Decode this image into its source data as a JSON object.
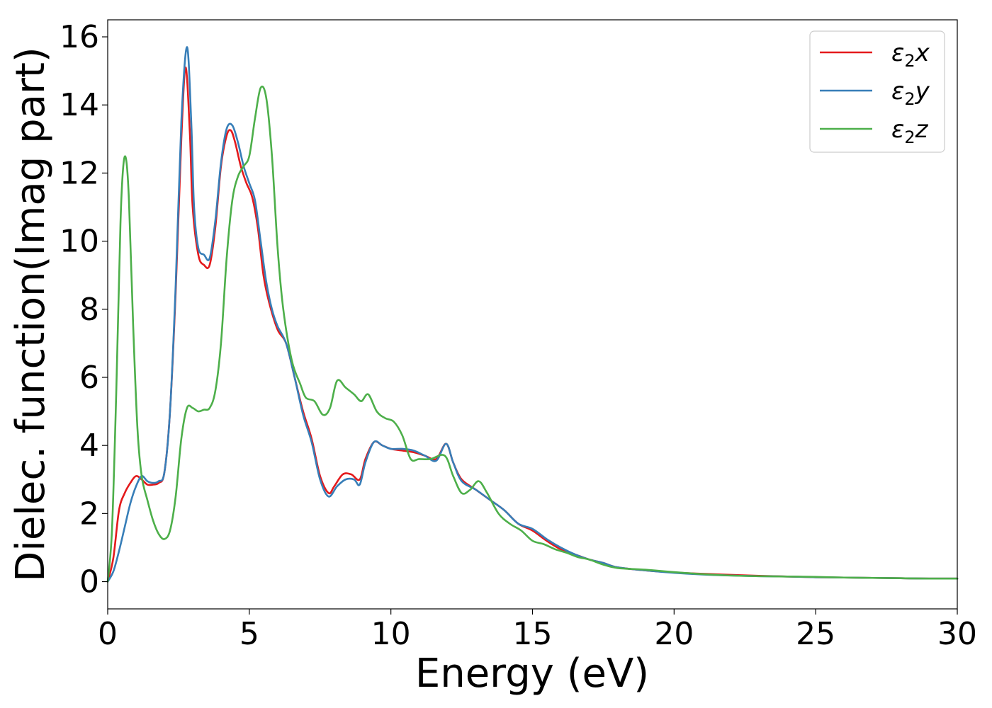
{
  "chart_data": {
    "type": "line",
    "title": "",
    "xlabel": "Energy (eV)",
    "ylabel": "Dielec. function(Imag part)",
    "xlim": [
      0,
      30
    ],
    "ylim": [
      -0.8,
      16.5
    ],
    "xticks": [
      0,
      5,
      10,
      15,
      20,
      25,
      30
    ],
    "yticks": [
      0,
      2,
      4,
      6,
      8,
      10,
      12,
      14,
      16
    ],
    "grid": false,
    "legend_position": "top-right",
    "series": [
      {
        "name": "ε2x",
        "legend": {
          "base": "ε",
          "sub": "2",
          "var": "x"
        },
        "color": "#e41a1c",
        "x": [
          0,
          0.2,
          0.4,
          0.6,
          0.8,
          1.0,
          1.2,
          1.4,
          1.6,
          1.8,
          2.0,
          2.2,
          2.4,
          2.6,
          2.75,
          2.9,
          3.0,
          3.2,
          3.4,
          3.6,
          3.8,
          4.0,
          4.2,
          4.35,
          4.5,
          4.7,
          4.9,
          5.1,
          5.3,
          5.5,
          5.7,
          6.0,
          6.3,
          6.6,
          6.9,
          7.2,
          7.5,
          7.8,
          8.0,
          8.3,
          8.6,
          8.9,
          9.1,
          9.4,
          9.7,
          10.0,
          10.4,
          10.8,
          11.2,
          11.6,
          11.95,
          12.2,
          12.5,
          13.0,
          13.5,
          14.0,
          14.5,
          15.0,
          15.5,
          16.0,
          16.5,
          17.0,
          17.5,
          18.0,
          19.0,
          20.0,
          21.0,
          22.0,
          23.0,
          24.0,
          25.0,
          26.0,
          27.0,
          28.0,
          29.0,
          30.0
        ],
        "y": [
          0.0,
          0.7,
          2.1,
          2.6,
          2.9,
          3.1,
          3.0,
          2.85,
          2.85,
          2.9,
          3.2,
          5.0,
          8.5,
          13.0,
          15.1,
          13.2,
          11.0,
          9.6,
          9.3,
          9.3,
          10.4,
          12.2,
          13.1,
          13.25,
          12.9,
          12.2,
          11.7,
          11.3,
          10.4,
          9.0,
          8.2,
          7.4,
          7.0,
          6.0,
          5.0,
          4.2,
          3.1,
          2.6,
          2.8,
          3.15,
          3.15,
          3.0,
          3.6,
          4.1,
          4.0,
          3.9,
          3.85,
          3.8,
          3.7,
          3.6,
          4.05,
          3.5,
          3.0,
          2.7,
          2.4,
          2.1,
          1.7,
          1.5,
          1.2,
          0.95,
          0.8,
          0.65,
          0.55,
          0.42,
          0.33,
          0.27,
          0.23,
          0.2,
          0.17,
          0.15,
          0.13,
          0.12,
          0.11,
          0.1,
          0.09,
          0.09
        ]
      },
      {
        "name": "ε2y",
        "legend": {
          "base": "ε",
          "sub": "2",
          "var": "y"
        },
        "color": "#377eb8",
        "x": [
          0,
          0.2,
          0.4,
          0.6,
          0.8,
          1.0,
          1.2,
          1.4,
          1.6,
          1.8,
          2.0,
          2.2,
          2.4,
          2.6,
          2.8,
          2.95,
          3.05,
          3.2,
          3.4,
          3.6,
          3.8,
          4.0,
          4.2,
          4.4,
          4.6,
          4.8,
          5.0,
          5.2,
          5.4,
          5.6,
          5.8,
          6.0,
          6.3,
          6.6,
          6.9,
          7.2,
          7.5,
          7.8,
          8.1,
          8.4,
          8.7,
          8.9,
          9.1,
          9.4,
          9.7,
          10.0,
          10.4,
          10.8,
          11.2,
          11.6,
          11.95,
          12.2,
          12.5,
          13.0,
          13.5,
          14.0,
          14.5,
          15.0,
          15.5,
          16.0,
          16.5,
          17.0,
          17.5,
          18.0,
          19.0,
          20.0,
          21.0,
          22.0,
          23.0,
          24.0,
          25.0,
          26.0,
          27.0,
          28.0,
          29.0,
          30.0
        ],
        "y": [
          0.0,
          0.3,
          0.9,
          1.6,
          2.3,
          2.8,
          3.1,
          2.95,
          2.9,
          2.95,
          3.2,
          5.0,
          8.7,
          13.5,
          15.7,
          13.5,
          11.0,
          9.8,
          9.6,
          9.5,
          10.6,
          12.3,
          13.3,
          13.4,
          12.9,
          12.2,
          11.7,
          11.2,
          10.0,
          8.8,
          8.0,
          7.5,
          7.0,
          6.0,
          4.9,
          4.1,
          3.0,
          2.5,
          2.8,
          3.0,
          3.0,
          2.85,
          3.5,
          4.1,
          4.0,
          3.9,
          3.9,
          3.85,
          3.7,
          3.55,
          4.05,
          3.5,
          2.95,
          2.7,
          2.4,
          2.1,
          1.7,
          1.55,
          1.25,
          1.0,
          0.8,
          0.65,
          0.55,
          0.42,
          0.33,
          0.26,
          0.21,
          0.18,
          0.16,
          0.15,
          0.13,
          0.12,
          0.11,
          0.1,
          0.09,
          0.09
        ]
      },
      {
        "name": "ε2z",
        "legend": {
          "base": "ε",
          "sub": "2",
          "var": "z"
        },
        "color": "#4daf4a",
        "x": [
          0,
          0.15,
          0.3,
          0.45,
          0.55,
          0.65,
          0.75,
          0.9,
          1.05,
          1.2,
          1.4,
          1.6,
          1.8,
          2.0,
          2.2,
          2.4,
          2.6,
          2.8,
          3.0,
          3.2,
          3.4,
          3.6,
          3.8,
          4.0,
          4.2,
          4.4,
          4.6,
          4.8,
          5.0,
          5.2,
          5.4,
          5.6,
          5.8,
          6.0,
          6.2,
          6.5,
          6.8,
          7.0,
          7.3,
          7.6,
          7.85,
          8.1,
          8.4,
          8.7,
          8.95,
          9.2,
          9.5,
          9.8,
          10.1,
          10.4,
          10.7,
          11.0,
          11.4,
          11.9,
          12.2,
          12.5,
          12.8,
          13.1,
          13.4,
          13.8,
          14.2,
          14.6,
          15.0,
          15.4,
          15.8,
          16.2,
          16.6,
          17.0,
          17.5,
          18.0,
          19.0,
          20.0,
          21.0,
          22.0,
          23.0,
          24.0,
          25.0,
          26.0,
          27.0,
          28.0,
          29.0,
          30.0
        ],
        "y": [
          0.0,
          1.5,
          5.5,
          10.5,
          12.2,
          12.4,
          11.2,
          7.5,
          4.5,
          3.1,
          2.4,
          1.8,
          1.4,
          1.25,
          1.5,
          2.5,
          4.2,
          5.1,
          5.1,
          5.0,
          5.05,
          5.1,
          5.6,
          7.0,
          9.5,
          11.2,
          11.9,
          12.2,
          12.5,
          13.6,
          14.5,
          14.2,
          12.5,
          9.8,
          8.0,
          6.5,
          5.8,
          5.4,
          5.3,
          4.9,
          5.1,
          5.9,
          5.7,
          5.5,
          5.3,
          5.5,
          5.0,
          4.8,
          4.7,
          4.3,
          3.6,
          3.6,
          3.6,
          3.7,
          3.1,
          2.6,
          2.7,
          2.95,
          2.6,
          2.0,
          1.7,
          1.5,
          1.2,
          1.1,
          0.95,
          0.85,
          0.72,
          0.65,
          0.5,
          0.4,
          0.35,
          0.28,
          0.22,
          0.18,
          0.16,
          0.15,
          0.14,
          0.12,
          0.11,
          0.1,
          0.09,
          0.09
        ]
      }
    ]
  }
}
